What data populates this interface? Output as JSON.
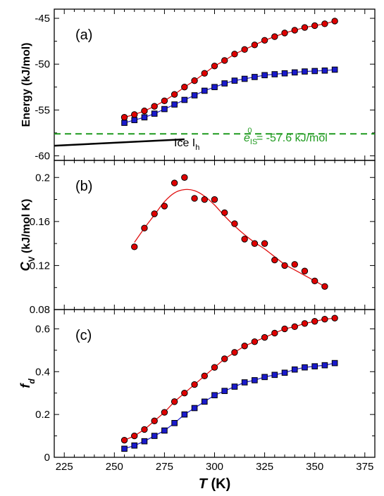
{
  "colors": {
    "red": "#e00000",
    "blue": "#1a1acd",
    "green": "#1f9a1f",
    "fit": "#e01010",
    "black": "#000000"
  },
  "chart_data": [
    {
      "type": "scatter",
      "panel_label": "(a)",
      "ylabel": "Energy (kJ/mol)",
      "xlim": [
        220,
        380
      ],
      "ylim": [
        -60.5,
        -44
      ],
      "yticks": [
        -60,
        -55,
        -50,
        -45
      ],
      "series": [
        {
          "color": "red",
          "marker": "circle",
          "x": [
            255,
            260,
            265,
            270,
            275,
            280,
            285,
            290,
            295,
            300,
            305,
            310,
            315,
            320,
            325,
            330,
            335,
            340,
            345,
            350,
            355,
            360
          ],
          "y": [
            -55.8,
            -55.5,
            -55.1,
            -54.6,
            -54.0,
            -53.3,
            -52.5,
            -51.8,
            -51.0,
            -50.2,
            -49.6,
            -48.9,
            -48.4,
            -47.9,
            -47.4,
            -47.0,
            -46.6,
            -46.3,
            -46.0,
            -45.8,
            -45.6,
            -45.3
          ]
        },
        {
          "color": "blue",
          "marker": "square",
          "x": [
            255,
            260,
            265,
            270,
            275,
            280,
            285,
            290,
            295,
            300,
            305,
            310,
            315,
            320,
            325,
            330,
            335,
            340,
            345,
            350,
            355,
            360
          ],
          "y": [
            -56.4,
            -56.1,
            -55.8,
            -55.4,
            -54.9,
            -54.4,
            -53.9,
            -53.4,
            -52.9,
            -52.5,
            -52.1,
            -51.8,
            -51.6,
            -51.4,
            -51.2,
            -51.1,
            -51.0,
            -50.9,
            -50.8,
            -50.75,
            -50.7,
            -50.6
          ]
        }
      ],
      "reference_line": {
        "y": -57.6,
        "label_prefix": "e",
        "label_sub": "IS",
        "label_sup": "0",
        "label_rest": " = -57.6 kJ/mol"
      },
      "ice_line": {
        "x": [
          220,
          285
        ],
        "y": [
          -58.9,
          -58.2
        ],
        "label_main": "Ice I",
        "label_sub": "h"
      }
    },
    {
      "type": "scatter",
      "panel_label": "(b)",
      "ylabel_main": "C",
      "ylabel_sub": "V",
      "ylabel_rest": " (kJ/mol K)",
      "xlim": [
        220,
        380
      ],
      "ylim": [
        0.08,
        0.2155
      ],
      "yticks": [
        0.08,
        0.12,
        0.16,
        0.2
      ],
      "ytick_labels": [
        "0.08",
        "0.12",
        "0.16",
        "0.2"
      ],
      "series": [
        {
          "color": "red",
          "marker": "circle",
          "x": [
            260,
            265,
            270,
            275,
            280,
            285,
            290,
            295,
            300,
            305,
            310,
            315,
            320,
            325,
            330,
            335,
            340,
            345,
            350,
            355
          ],
          "y": [
            0.137,
            0.154,
            0.167,
            0.174,
            0.195,
            0.2,
            0.181,
            0.18,
            0.18,
            0.168,
            0.158,
            0.144,
            0.14,
            0.14,
            0.125,
            0.12,
            0.121,
            0.115,
            0.106,
            0.101
          ]
        }
      ],
      "fit_curve": {
        "x": [
          260,
          265,
          270,
          275,
          280,
          285,
          290,
          295,
          300,
          305,
          310,
          315,
          320,
          325,
          330,
          335,
          340,
          345,
          350,
          355
        ],
        "y": [
          0.141,
          0.154,
          0.166,
          0.178,
          0.186,
          0.189,
          0.188,
          0.183,
          0.175,
          0.165,
          0.156,
          0.148,
          0.141,
          0.135,
          0.128,
          0.121,
          0.116,
          0.111,
          0.106,
          0.101
        ]
      }
    },
    {
      "type": "scatter",
      "panel_label": "(c)",
      "ylabel_main": "f",
      "ylabel_sub": "d",
      "xlabel_main": "T",
      "xlabel_rest": " (K)",
      "xlim": [
        220,
        380
      ],
      "xticks": [
        225,
        250,
        275,
        300,
        325,
        350,
        375
      ],
      "ylim": [
        0,
        0.69
      ],
      "yticks": [
        0,
        0.2,
        0.4,
        0.6
      ],
      "ytick_labels": [
        "0",
        "0.2",
        "0.4",
        "0.6"
      ],
      "series": [
        {
          "color": "red",
          "marker": "circle",
          "x": [
            255,
            260,
            265,
            270,
            275,
            280,
            285,
            290,
            295,
            300,
            305,
            310,
            315,
            320,
            325,
            330,
            335,
            340,
            345,
            350,
            355,
            360
          ],
          "y": [
            0.08,
            0.1,
            0.13,
            0.17,
            0.21,
            0.26,
            0.3,
            0.34,
            0.38,
            0.42,
            0.46,
            0.49,
            0.52,
            0.54,
            0.56,
            0.58,
            0.6,
            0.61,
            0.625,
            0.635,
            0.645,
            0.65
          ]
        },
        {
          "color": "blue",
          "marker": "square",
          "x": [
            255,
            260,
            265,
            270,
            275,
            280,
            285,
            290,
            295,
            300,
            305,
            310,
            315,
            320,
            325,
            330,
            335,
            340,
            345,
            350,
            355,
            360
          ],
          "y": [
            0.04,
            0.055,
            0.075,
            0.1,
            0.125,
            0.16,
            0.2,
            0.23,
            0.26,
            0.29,
            0.31,
            0.33,
            0.35,
            0.36,
            0.375,
            0.385,
            0.395,
            0.41,
            0.42,
            0.425,
            0.43,
            0.44
          ]
        }
      ]
    }
  ]
}
